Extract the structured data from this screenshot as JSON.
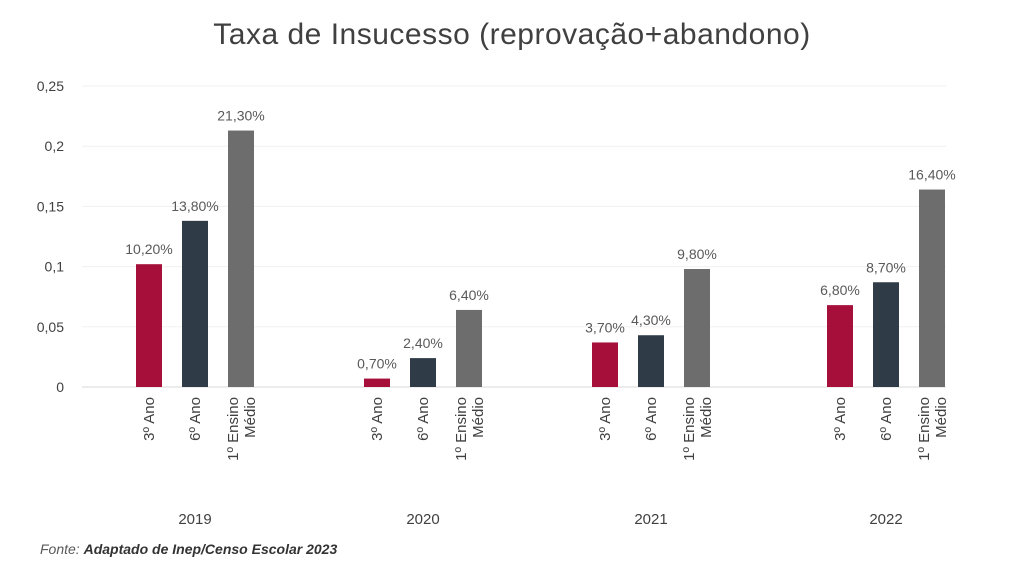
{
  "chart_data": {
    "type": "bar",
    "title": "Taxa de Insucesso (reprovação+abandono)",
    "xlabel": "",
    "ylabel": "",
    "ylim": [
      0,
      0.25
    ],
    "y_ticks": [
      "0",
      "0,05",
      "0,1",
      "0,15",
      "0,2",
      "0,25"
    ],
    "y_tick_values": [
      0,
      0.05,
      0.1,
      0.15,
      0.2,
      0.25
    ],
    "grid": true,
    "legend": "none",
    "groups": [
      {
        "label": "2019",
        "bars": [
          {
            "category": "3º Ano",
            "value": 0.102,
            "data_label": "10,20%",
            "color": "#A50F3A"
          },
          {
            "category": "6º Ano",
            "value": 0.138,
            "data_label": "13,80%",
            "color": "#2F3B47"
          },
          {
            "category": "1º Ensino Médio",
            "value": 0.213,
            "data_label": "21,30%",
            "color": "#6D6D6D"
          }
        ]
      },
      {
        "label": "2020",
        "bars": [
          {
            "category": "3º Ano",
            "value": 0.007,
            "data_label": "0,70%",
            "color": "#A50F3A"
          },
          {
            "category": "6º Ano",
            "value": 0.024,
            "data_label": "2,40%",
            "color": "#2F3B47"
          },
          {
            "category": "1º Ensino Médio",
            "value": 0.064,
            "data_label": "6,40%",
            "color": "#6D6D6D"
          }
        ]
      },
      {
        "label": "2021",
        "bars": [
          {
            "category": "3º Ano",
            "value": 0.037,
            "data_label": "3,70%",
            "color": "#A50F3A"
          },
          {
            "category": "6º Ano",
            "value": 0.043,
            "data_label": "4,30%",
            "color": "#2F3B47"
          },
          {
            "category": "1º Ensino Médio",
            "value": 0.098,
            "data_label": "9,80%",
            "color": "#6D6D6D"
          }
        ]
      },
      {
        "label": "2022",
        "bars": [
          {
            "category": "3º Ano",
            "value": 0.068,
            "data_label": "6,80%",
            "color": "#A50F3A"
          },
          {
            "category": "6º Ano",
            "value": 0.087,
            "data_label": "8,70%",
            "color": "#2F3B47"
          },
          {
            "category": "1º Ensino Médio",
            "value": 0.164,
            "data_label": "16,40%",
            "color": "#6D6D6D"
          }
        ]
      }
    ]
  },
  "source": {
    "prefix": "Fonte: ",
    "text": "Adaptado de Inep/Censo Escolar 2023"
  }
}
